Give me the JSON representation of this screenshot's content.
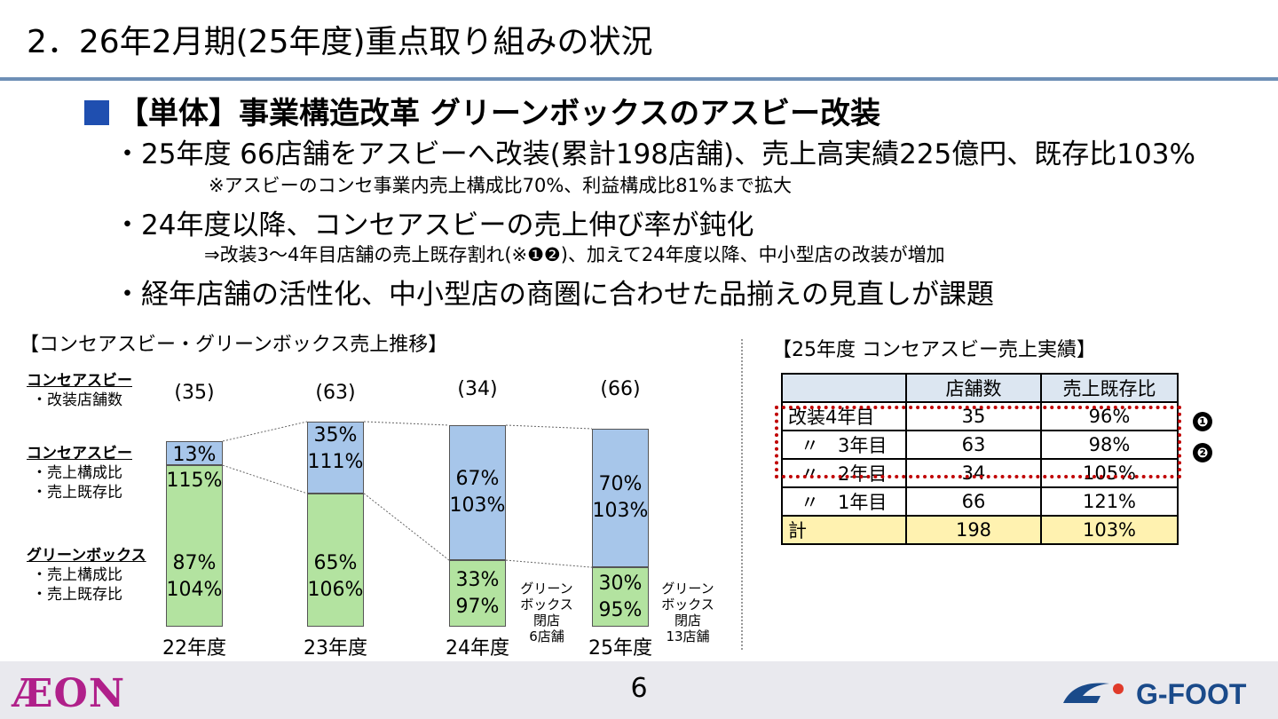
{
  "title": "2．26年2月期(25年度)重点取り組みの状況",
  "heading": "【単体】事業構造改革 グリーンボックスのアスビー改装",
  "bullets": [
    "・25年度 66店舗をアスビーへ改装(累計198店舗)、売上高実績225億円、既存比103%",
    "・24年度以降、コンセアスビーの売上伸び率が鈍化",
    "・経年店舗の活性化、中小型店の商圏に合わせた品揃えの見直しが課題"
  ],
  "notes": [
    "※アスビーのコンセ事業内売上構成比70%、利益構成比81%まで拡大",
    "⇒改装3～4年目店舗の売上既存割れ(※❶❷)、加えて24年度以降、中小型店の改装が増加"
  ],
  "chart_section_title": "【コンセアスビー・グリーンボックス売上推移】",
  "row_labels": {
    "stores_head": "コンセアスビー",
    "stores_sub": "・改装店舗数",
    "asbee_head": "コンセアスビー",
    "asbee_sub1": "・売上構成比",
    "asbee_sub2": "・売上既存比",
    "gb_head": "グリーンボックス",
    "gb_sub1": "・売上構成比",
    "gb_sub2": "・売上既存比"
  },
  "chart_data": {
    "type": "bar",
    "stacked": true,
    "categories": [
      "22年度",
      "23年度",
      "24年度",
      "25年度"
    ],
    "store_counts": [
      "(35)",
      "(63)",
      "(34)",
      "(66)"
    ],
    "series": [
      {
        "name": "コンセアスビー",
        "color": "#a7c6ea",
        "values": [
          13,
          35,
          67,
          70
        ],
        "labels": [
          "13%",
          "35%",
          "67%",
          "70%"
        ],
        "yoy_labels": [
          "115%",
          "111%",
          "103%",
          "103%"
        ]
      },
      {
        "name": "グリーンボックス",
        "color": "#b3e3a0",
        "values": [
          87,
          65,
          33,
          30
        ],
        "labels": [
          "87%",
          "65%",
          "33%",
          "30%"
        ],
        "yoy_labels": [
          "104%",
          "106%",
          "97%",
          "95%"
        ]
      }
    ],
    "closures": [
      {
        "category": "24年度",
        "text": [
          "グリーン",
          "ボックス",
          "閉店",
          "6店舗"
        ]
      },
      {
        "category": "25年度",
        "text": [
          "グリーン",
          "ボックス",
          "閉店",
          "13店舗"
        ]
      }
    ],
    "ylim": [
      0,
      100
    ]
  },
  "table_section_title": "【25年度 コンセアスビー売上実績】",
  "table": {
    "headers": [
      "",
      "店舗数",
      "売上既存比"
    ],
    "rows": [
      {
        "label": "改装4年目",
        "stores": "35",
        "ratio": "96%"
      },
      {
        "label": "〃　3年目",
        "stores": "63",
        "ratio": "98%"
      },
      {
        "label": "〃　2年目",
        "stores": "34",
        "ratio": "105%"
      },
      {
        "label": "〃　1年目",
        "stores": "66",
        "ratio": "121%"
      },
      {
        "label": "計",
        "stores": "198",
        "ratio": "103%"
      }
    ]
  },
  "markers": [
    "❶",
    "❷"
  ],
  "page_number": "6",
  "logos": {
    "left": "ÆON",
    "right": "G-FOOT"
  },
  "colors": {
    "accent_blue": "#1f4fb0",
    "rule": "#6e8fb6",
    "highlight_red": "#c00000",
    "total_row": "#fff2b0",
    "header_row": "#dce6f1"
  }
}
